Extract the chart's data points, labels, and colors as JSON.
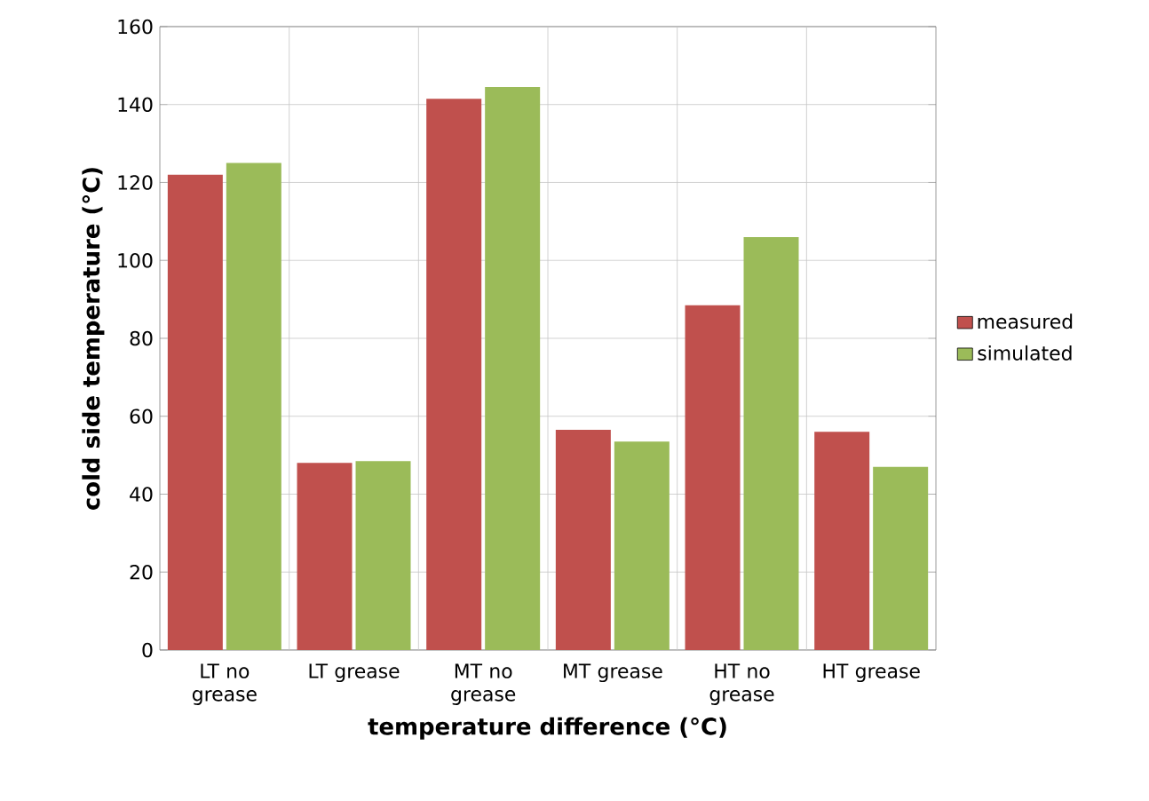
{
  "chart_data": {
    "type": "bar",
    "xlabel": "temperature difference (°C)",
    "ylabel": "cold side temperature (°C)",
    "categories": [
      "LT no grease",
      "LT grease",
      "MT no grease",
      "MT grease",
      "HT no grease",
      "HT grease"
    ],
    "series": [
      {
        "name": "measured",
        "color": "#c0504d",
        "values": [
          122,
          48,
          141.5,
          56.5,
          88.5,
          56
        ]
      },
      {
        "name": "simulated",
        "color": "#9bbb59",
        "values": [
          125,
          48.5,
          144.5,
          53.5,
          106,
          47
        ]
      }
    ],
    "ylim": [
      0,
      160
    ],
    "yticks": [
      0,
      20,
      40,
      60,
      80,
      100,
      120,
      140,
      160
    ],
    "grid": true,
    "legend": "right"
  }
}
